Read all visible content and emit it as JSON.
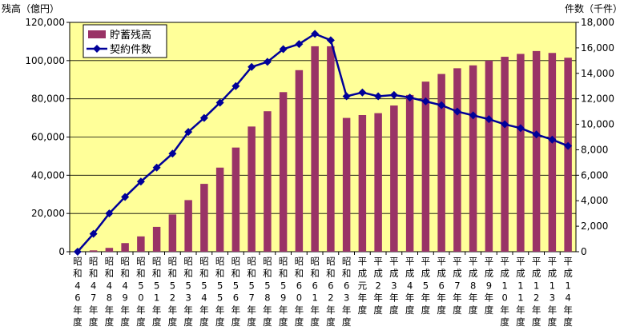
{
  "chart_data": {
    "type": "bar",
    "title": "",
    "y_left_label": "残高（億円）",
    "y_right_label": "件数（千件）",
    "y_left_range": [
      0,
      120000
    ],
    "y_left_ticks": [
      "0",
      "20,000",
      "40,000",
      "60,000",
      "80,000",
      "100,000",
      "120,000"
    ],
    "y_right_range": [
      0,
      18000
    ],
    "y_right_ticks": [
      "0",
      "2,000",
      "4,000",
      "6,000",
      "8,000",
      "10,000",
      "12,000",
      "14,000",
      "16,000",
      "18,000"
    ],
    "legend_position": "top-left",
    "plot_background": "#ffff99",
    "categories": [
      "昭和46年度",
      "昭和47年度",
      "昭和48年度",
      "昭和49年度",
      "昭和50年度",
      "昭和51年度",
      "昭和52年度",
      "昭和53年度",
      "昭和54年度",
      "昭和55年度",
      "昭和56年度",
      "昭和57年度",
      "昭和58年度",
      "昭和59年度",
      "昭和60年度",
      "昭和61年度",
      "昭和62年度",
      "昭和63年度",
      "平成元年度",
      "平成2年度",
      "平成3年度",
      "平成4年度",
      "平成5年度",
      "平成6年度",
      "平成7年度",
      "平成8年度",
      "平成9年度",
      "平成10年度",
      "平成11年度",
      "平成12年度",
      "平成13年度",
      "平成14年度"
    ],
    "series": [
      {
        "name": "貯蓄残高",
        "type": "bar",
        "axis": "left",
        "color": "#993366",
        "values": [
          200,
          700,
          2000,
          4500,
          8000,
          13000,
          19500,
          27000,
          35500,
          44000,
          54500,
          65500,
          73500,
          83500,
          95000,
          107500,
          107500,
          70000,
          71500,
          72500,
          76500,
          82000,
          89000,
          93000,
          96000,
          97500,
          100000,
          102000,
          103500,
          105000,
          104000,
          101500
        ]
      },
      {
        "name": "契約件数",
        "type": "line",
        "axis": "right",
        "color": "#000099",
        "values": [
          0,
          1400,
          3000,
          4300,
          5500,
          6600,
          7700,
          9400,
          10500,
          11700,
          13000,
          14500,
          14900,
          15900,
          16300,
          17100,
          16600,
          12200,
          12500,
          12200,
          12300,
          12100,
          11800,
          11500,
          11000,
          10700,
          10400,
          10000,
          9700,
          9200,
          8800,
          8300
        ]
      }
    ]
  }
}
